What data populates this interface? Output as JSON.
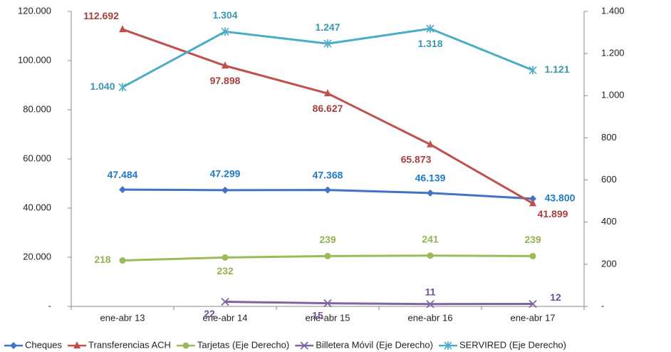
{
  "chart_data": {
    "type": "line",
    "categories": [
      "ene-abr 13",
      "ene-abr 14",
      "ene-abr 15",
      "ene-abr 16",
      "ene-abr 17"
    ],
    "ylim": [
      0,
      120000
    ],
    "yticks": [
      {
        "value": 0,
        "label": "-"
      },
      {
        "value": 20000,
        "label": "20.000"
      },
      {
        "value": 40000,
        "label": "40.000"
      },
      {
        "value": 60000,
        "label": "60.000"
      },
      {
        "value": 80000,
        "label": "80.000"
      },
      {
        "value": 100000,
        "label": "100.000"
      },
      {
        "value": 120000,
        "label": "120.000"
      }
    ],
    "y2lim": [
      0,
      1400
    ],
    "y2ticks": [
      {
        "value": 0,
        "label": "-"
      },
      200,
      400,
      600,
      800,
      {
        "value": 1000,
        "label": "1.000"
      },
      {
        "value": 1200,
        "label": "1.200"
      },
      {
        "value": 1400,
        "label": "1.400"
      }
    ],
    "legend": "bottom",
    "series": [
      {
        "name": "Cheques",
        "color": "#4472c4",
        "label_color": "#1f7bc6",
        "marker": "diamond",
        "values": [
          47484,
          47299,
          47368,
          46139,
          43800
        ],
        "value_labels": [
          "47.484",
          "47.299",
          "47.368",
          "46.139",
          "43.800"
        ]
      },
      {
        "name": "Transferencias ACH",
        "color": "#c0504d",
        "label_color": "#a5403d",
        "marker": "triangle",
        "values": [
          112692,
          97898,
          86627,
          65873,
          41899
        ],
        "value_labels": [
          "112.692",
          "97.898",
          "86.627",
          "65.873",
          "41.899"
        ]
      },
      {
        "name": "Tarjetas (Eje Derecho)",
        "color": "#9bbb59",
        "label_color": "#93b44e",
        "marker": "circle",
        "axis": "y2",
        "values": [
          218,
          232,
          239,
          241,
          239
        ]
      },
      {
        "name": "Billetera Móvil (Eje Derecho)",
        "color": "#8064a2",
        "label_color": "#6f5194",
        "marker": "x",
        "axis": "y2",
        "values": [
          null,
          22,
          15,
          11,
          12
        ]
      },
      {
        "name": "SERVIRED (Eje Derecho)",
        "color": "#4bacc6",
        "label_color": "#3a97ae",
        "marker": "star",
        "axis": "y2",
        "values": [
          1040,
          1304,
          1247,
          1318,
          1121
        ],
        "value_labels": [
          "1.040",
          "1.304",
          "1.247",
          "1.318",
          "1.121"
        ]
      }
    ]
  }
}
